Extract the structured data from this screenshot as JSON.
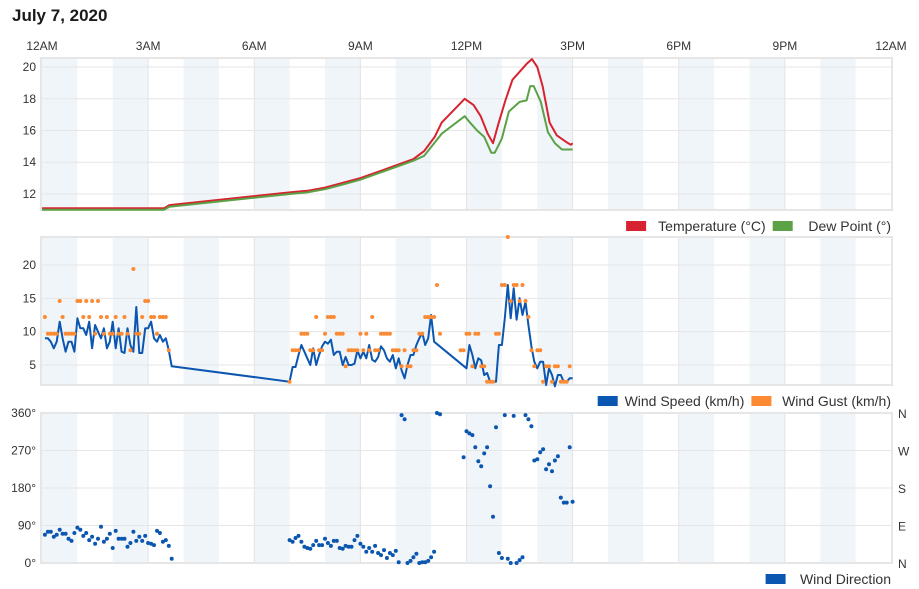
{
  "title": "July 7, 2020",
  "x_axis": {
    "tick_hours": [
      0,
      3,
      6,
      9,
      12,
      15,
      18,
      21,
      24
    ],
    "tick_labels": [
      "12AM",
      "3AM",
      "6AM",
      "9AM",
      "12PM",
      "3PM",
      "6PM",
      "9PM",
      "12AM"
    ],
    "shaded_even_hours": true
  },
  "colors": {
    "temperature": "#d7232f",
    "dew_point": "#5ba145",
    "wind_speed": "#0b56b0",
    "wind_gust": "#fb8a32",
    "wind_direction": "#0b56b0",
    "band": "#f0f5fa",
    "grid": "#e6e6e6"
  },
  "chart_data": [
    {
      "type": "line",
      "ylim": [
        10.99,
        20.57
      ],
      "yticks": [
        12,
        14,
        16,
        18,
        20
      ],
      "ytick_labels": [
        "12",
        "14",
        "16",
        "18",
        "20"
      ],
      "grid": true,
      "legend": "bottom-right",
      "series": [
        {
          "name": "Temperature (°C)",
          "points": [
            [
              "0:00",
              11.1
            ],
            [
              "3:27",
              11.1
            ],
            [
              "3:36",
              11.3
            ],
            [
              "7:00",
              12.1
            ],
            [
              "7:30",
              12.2
            ],
            [
              "8:00",
              12.4
            ],
            [
              "8:30",
              12.7
            ],
            [
              "9:00",
              13.0
            ],
            [
              "9:30",
              13.4
            ],
            [
              "10:00",
              13.8
            ],
            [
              "10:30",
              14.2
            ],
            [
              "10:48",
              14.7
            ],
            [
              "11:06",
              15.6
            ],
            [
              "11:18",
              16.5
            ],
            [
              "11:57",
              18.0
            ],
            [
              "12:12",
              17.6
            ],
            [
              "12:24",
              16.9
            ],
            [
              "12:36",
              15.8
            ],
            [
              "12:45",
              15.2
            ],
            [
              "12:54",
              16.4
            ],
            [
              "13:06",
              17.9
            ],
            [
              "13:18",
              19.2
            ],
            [
              "13:30",
              19.7
            ],
            [
              "13:42",
              20.2
            ],
            [
              "13:51",
              20.5
            ],
            [
              "14:00",
              20.0
            ],
            [
              "14:09",
              18.8
            ],
            [
              "14:21",
              16.5
            ],
            [
              "14:33",
              15.7
            ],
            [
              "14:48",
              15.3
            ],
            [
              "14:57",
              15.1
            ],
            [
              "15:00",
              15.2
            ]
          ]
        },
        {
          "name": "Dew Point (°)",
          "points": [
            [
              "0:00",
              11.0
            ],
            [
              "3:27",
              11.0
            ],
            [
              "3:36",
              11.2
            ],
            [
              "7:00",
              12.0
            ],
            [
              "7:30",
              12.1
            ],
            [
              "8:00",
              12.3
            ],
            [
              "8:30",
              12.6
            ],
            [
              "9:00",
              12.9
            ],
            [
              "9:30",
              13.3
            ],
            [
              "10:00",
              13.7
            ],
            [
              "10:30",
              14.1
            ],
            [
              "10:48",
              14.4
            ],
            [
              "11:18",
              15.8
            ],
            [
              "11:57",
              16.9
            ],
            [
              "12:06",
              16.5
            ],
            [
              "12:18",
              16.0
            ],
            [
              "12:30",
              15.6
            ],
            [
              "12:42",
              14.6
            ],
            [
              "12:48",
              14.6
            ],
            [
              "13:00",
              15.5
            ],
            [
              "13:12",
              17.2
            ],
            [
              "13:30",
              17.8
            ],
            [
              "13:42",
              17.9
            ],
            [
              "13:48",
              18.8
            ],
            [
              "13:54",
              18.8
            ],
            [
              "14:06",
              17.8
            ],
            [
              "14:18",
              15.9
            ],
            [
              "14:30",
              15.2
            ],
            [
              "14:42",
              14.8
            ],
            [
              "15:00",
              14.8
            ]
          ]
        }
      ]
    },
    {
      "type": "line+scatter",
      "ylim": [
        2,
        24.2
      ],
      "yticks": [
        5,
        10,
        15,
        20
      ],
      "ytick_labels": [
        "5",
        "10",
        "15",
        "20"
      ],
      "grid": true,
      "legend": "bottom-right",
      "interval_minutes": 5,
      "series": [
        {
          "name": "Wind Speed (km/h)",
          "segments": [
            {
              "start": "0:05",
              "values": [
                9,
                9,
                8.5,
                7.5,
                8.5,
                11.5,
                9,
                7,
                8.5,
                8.5,
                7,
                12,
                10.5,
                10.5,
                9.5,
                11.5,
                7.5,
                11,
                10,
                9,
                10.5,
                7.5,
                8.5,
                11.5,
                7.5,
                10.5,
                7,
                6.8,
                10.5,
                8,
                7,
                13.7,
                6.8,
                6.8,
                10.5,
                10.5,
                11.5,
                9,
                8.5,
                9.5,
                8.5,
                9,
                7.2,
                4.8
              ]
            },
            {
              "start": "7:00",
              "values": [
                2.5,
                4.7,
                4.7,
                6.5,
                8,
                7,
                6,
                5,
                7.5,
                5,
                6.5,
                7.8,
                8.5,
                8.2,
                8.8,
                6.5,
                7,
                7,
                5,
                6.2,
                5,
                5,
                5.2,
                7.2,
                6,
                7,
                6,
                8,
                5.8,
                5.5,
                6.2,
                7.8,
                7.2,
                6,
                5.5,
                6.5,
                4.5,
                6,
                4.2,
                3,
                5,
                6.5,
                6.5,
                8,
                9,
                9.8,
                8,
                9,
                12.5,
                8.5
              ]
            },
            {
              "start": "12:00",
              "values": [
                4.5,
                8,
                6.5,
                4.5,
                6,
                5.7,
                3.5,
                3.8,
                2.5,
                2.5,
                2.5,
                8,
                8,
                12,
                17,
                12,
                16.5,
                11.8,
                15,
                12.5,
                14.5,
                11,
                7.8,
                5.5,
                4.5,
                5.5,
                5.5,
                2,
                4.5,
                3.5,
                1.8,
                3.5,
                3.5,
                2.5,
                2.5,
                3,
                3
              ]
            }
          ]
        },
        {
          "name": "Wind Gust (km/h)",
          "segments": [
            {
              "start": "0:05",
              "values": [
                12.2,
                9.7,
                9.7,
                9.7,
                9.7,
                14.6,
                12.2,
                9.7,
                9.7,
                9.7,
                9.7,
                14.6,
                14.6,
                12.2,
                14.6,
                12.2,
                14.6,
                9.7,
                14.6,
                12.2,
                9.7,
                12.2,
                9.7,
                9.7,
                12.2,
                9.7,
                9.7,
                12.2,
                9.7,
                7.2,
                19.4,
                9.7,
                9.7,
                12.2,
                14.6,
                14.6,
                12.2,
                12.2,
                9.7,
                12.2,
                12.2,
                12.2,
                7.2
              ]
            },
            {
              "start": "7:00",
              "values": [
                2.5,
                7.2,
                7.2,
                7.2,
                9.7,
                9.7,
                9.7,
                7.2,
                7.2,
                12.2,
                7.2,
                7.2,
                9.7,
                12.2,
                12.2,
                12.2,
                9.7,
                9.7,
                9.7,
                4.8,
                7.2,
                7.2,
                7.2,
                7.2,
                9.7,
                7.2,
                9.7,
                7.2,
                12.2,
                7.2,
                7.2,
                9.7,
                9.7,
                9.7,
                9.7,
                7.2,
                7.2,
                7.2,
                4.8,
                7.2,
                4.8,
                4.8,
                7.2,
                7.2,
                9.7,
                9.7,
                12.2,
                12.2,
                12.2,
                12.2,
                17,
                9.7
              ]
            },
            {
              "start": "11:50",
              "values": [
                7.2,
                7.2,
                9.7,
                9.7,
                4.8,
                9.7,
                9.7,
                4.8,
                4.8,
                2.5,
                2.5,
                2.5,
                9.7,
                9.7,
                17,
                17,
                24.2,
                14.6,
                17,
                17,
                14.6,
                17,
                14.6,
                12.2,
                7.2,
                4.8,
                7.2,
                7.2,
                2.5,
                4.8,
                4.8,
                2.5,
                4.8,
                4.8,
                2.5,
                2.5,
                2.5,
                4.8
              ]
            }
          ]
        }
      ]
    },
    {
      "type": "scatter",
      "ylim": [
        0,
        360
      ],
      "yticks": [
        0,
        90,
        180,
        270,
        360
      ],
      "ytick_labels": [
        "0°",
        "90°",
        "180°",
        "270°",
        "360°"
      ],
      "ytick_labels_right": [
        "N",
        "E",
        "S",
        "W",
        "N"
      ],
      "grid": true,
      "legend": "bottom-right",
      "interval_minutes": 5,
      "series": [
        {
          "name": "Wind Direction",
          "segments": [
            {
              "start": "0:05",
              "values": [
                68,
                75,
                75,
                63,
                68,
                80,
                70,
                70,
                58,
                53,
                72,
                85,
                80,
                65,
                72,
                55,
                63,
                46,
                58,
                87,
                51,
                58,
                70,
                36,
                77,
                58,
                58,
                58,
                39,
                48,
                75,
                53,
                63,
                53,
                65,
                48,
                46,
                43,
                77,
                72,
                51,
                55,
                41,
                10
              ]
            },
            {
              "start": "7:00",
              "values": [
                55,
                51,
                60,
                65,
                51,
                39,
                36,
                34,
                43,
                53,
                43,
                43,
                58,
                48,
                41,
                53,
                53,
                36,
                34,
                41,
                39,
                39,
                55,
                65,
                46,
                39,
                27,
                36,
                27,
                41,
                24,
                19,
                31,
                12,
                24,
                19,
                29,
                2,
                355,
                345,
                0,
                5,
                14,
                22,
                0,
                2,
                2,
                5,
                14,
                27,
                360,
                357,
                null,
                null,
                null,
                null,
                null,
                null,
                null,
                254,
                316,
                311,
                307,
                278,
                244,
                232,
                263,
                278,
                184,
                111,
                326,
                24,
                12,
                355,
                10,
                0,
                353,
                0,
                7,
                14,
                355,
                345,
                328,
                246,
                249,
                266,
                273,
                225,
                237,
                220,
                246,
                256,
                157,
                145,
                145,
                278,
                147
              ]
            }
          ]
        }
      ]
    }
  ]
}
